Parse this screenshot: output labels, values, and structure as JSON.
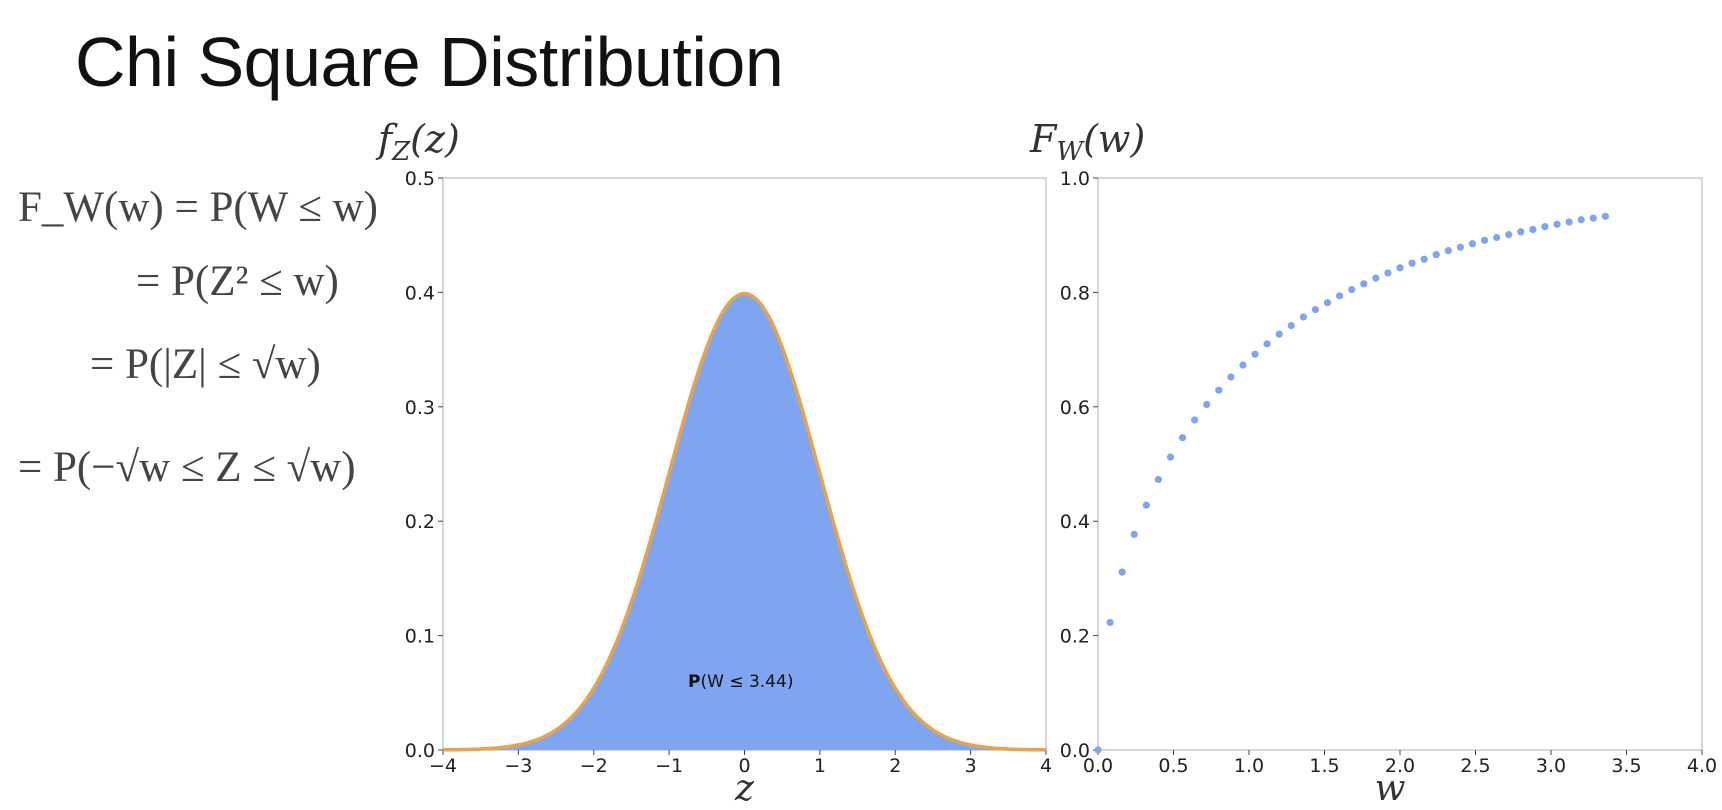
{
  "title": "Chi Square Distribution",
  "equations": [
    "F_W(w) = P(W ≤ w)",
    "= P(Z² ≤ w)",
    "= P(|Z| ≤ √w)",
    "= P(−√w ≤ Z ≤ √w)"
  ],
  "colors": {
    "fill": "#7fa4f0",
    "curve": "#e8a34a",
    "points": "#7fa4f0",
    "axis": "#bbbbbb"
  },
  "chart_data": [
    {
      "type": "area",
      "ylabel": "f_Z(z)",
      "xlabel": "z",
      "xlim": [
        -4,
        4
      ],
      "ylim": [
        0,
        0.5
      ],
      "xticks": [
        -4,
        -3,
        -2,
        -1,
        0,
        1,
        2,
        3,
        4
      ],
      "yticks": [
        0.0,
        0.1,
        0.2,
        0.3,
        0.4,
        0.5
      ],
      "x": [
        -4.0,
        -3.5,
        -3.0,
        -2.5,
        -2.0,
        -1.5,
        -1.0,
        -0.5,
        0.0,
        0.5,
        1.0,
        1.5,
        2.0,
        2.5,
        3.0,
        3.5,
        4.0
      ],
      "y": [
        0.0001,
        0.0009,
        0.0044,
        0.0175,
        0.054,
        0.1295,
        0.242,
        0.3521,
        0.3989,
        0.3521,
        0.242,
        0.1295,
        0.054,
        0.0175,
        0.0044,
        0.0009,
        0.0001
      ],
      "fill_between": [
        -4,
        4
      ],
      "annotation": {
        "text": "P(W ≤ 3.44)",
        "bold_prefix": "P",
        "rest": "(W ≤ 3.44)",
        "x": -0.05,
        "y": 0.055
      },
      "grid": false
    },
    {
      "type": "scatter",
      "ylabel": "F_W(w)",
      "xlabel": "w",
      "xlim": [
        0.0,
        4.0
      ],
      "ylim": [
        0.0,
        1.0
      ],
      "xticks": [
        0.0,
        0.5,
        1.0,
        1.5,
        2.0,
        2.5,
        3.0,
        3.5,
        4.0
      ],
      "yticks": [
        0.0,
        0.2,
        0.4,
        0.6,
        0.8,
        1.0
      ],
      "x": [
        0.0,
        0.08,
        0.16,
        0.24,
        0.32,
        0.4,
        0.48,
        0.56,
        0.64,
        0.72,
        0.8,
        0.88,
        0.96,
        1.04,
        1.12,
        1.2,
        1.28,
        1.36,
        1.44,
        1.52,
        1.6,
        1.68,
        1.76,
        1.84,
        1.92,
        2.0,
        2.08,
        2.16,
        2.24,
        2.32,
        2.4,
        2.48,
        2.56,
        2.64,
        2.72,
        2.8,
        2.88,
        2.96,
        3.04,
        3.12,
        3.2,
        3.28,
        3.36
      ],
      "y": [
        0.0,
        0.223,
        0.311,
        0.377,
        0.428,
        0.473,
        0.512,
        0.546,
        0.577,
        0.604,
        0.629,
        0.652,
        0.673,
        0.692,
        0.71,
        0.727,
        0.742,
        0.757,
        0.77,
        0.782,
        0.794,
        0.805,
        0.815,
        0.825,
        0.834,
        0.843,
        0.851,
        0.858,
        0.866,
        0.873,
        0.879,
        0.885,
        0.891,
        0.896,
        0.901,
        0.906,
        0.91,
        0.915,
        0.919,
        0.923,
        0.927,
        0.93,
        0.933
      ],
      "grid": false
    }
  ]
}
